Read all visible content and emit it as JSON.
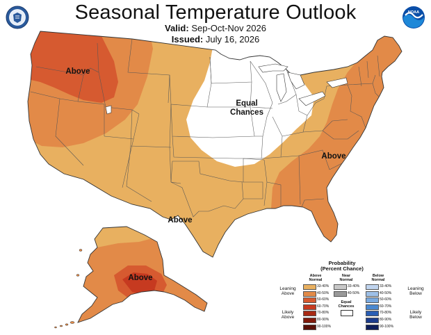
{
  "header": {
    "title": "Seasonal Temperature Outlook",
    "valid_label": "Valid:",
    "valid_value": "Sep-Oct-Nov 2026",
    "issued_label": "Issued:",
    "issued_value": "July 16, 2026"
  },
  "logos": {
    "left": "department-of-commerce-seal",
    "right": "noaa-logo",
    "right_text": "NOAA"
  },
  "map": {
    "labels": {
      "northwest": "Above",
      "center_line1": "Equal",
      "center_line2": "Chances",
      "southeast": "Above",
      "texas": "Above",
      "alaska": "Above"
    },
    "colors": {
      "above_33_40": "#e8b060",
      "above_40_50": "#e28a48",
      "above_50_60": "#d65a30",
      "above_60_70": "#c63a20",
      "above_70_80": "#a82a14",
      "above_80_90": "#801a0c",
      "above_90_100": "#581008",
      "equal_chances": "#ffffff",
      "borders": "#333333"
    }
  },
  "legend": {
    "title_line1": "Probability",
    "title_line2": "(Percent Chance)",
    "above_header_line1": "Above",
    "above_header_line2": "Normal",
    "near_header_line1": "Near",
    "near_header_line2": "Normal",
    "below_header_line1": "Below",
    "below_header_line2": "Normal",
    "leaning_above_line1": "Leaning",
    "leaning_above_line2": "Above",
    "likely_above_line1": "Likely",
    "likely_above_line2": "Above",
    "leaning_below_line1": "Leaning",
    "leaning_below_line2": "Below",
    "likely_below_line1": "Likely",
    "likely_below_line2": "Below",
    "equal_line1": "Equal",
    "equal_line2": "Chances",
    "above": [
      {
        "label": "33-40%",
        "color": "#e8b060"
      },
      {
        "label": "40-50%",
        "color": "#e28a48"
      },
      {
        "label": "50-60%",
        "color": "#d65a30"
      },
      {
        "label": "60-70%",
        "color": "#c63a20"
      },
      {
        "label": "70-80%",
        "color": "#a82a14"
      },
      {
        "label": "80-90%",
        "color": "#801a0c"
      },
      {
        "label": "90-100%",
        "color": "#581008"
      }
    ],
    "near": [
      {
        "label": "33-40%",
        "color": "#c8c8c8"
      },
      {
        "label": "40-50%",
        "color": "#999999"
      }
    ],
    "below": [
      {
        "label": "33-40%",
        "color": "#c0d4ee"
      },
      {
        "label": "40-50%",
        "color": "#9ec0e8"
      },
      {
        "label": "50-60%",
        "color": "#7aaae0"
      },
      {
        "label": "60-70%",
        "color": "#4a88d0"
      },
      {
        "label": "70-80%",
        "color": "#2a5eb4"
      },
      {
        "label": "80-90%",
        "color": "#1c3c8c"
      },
      {
        "label": "90-100%",
        "color": "#0e1e5a"
      }
    ]
  }
}
